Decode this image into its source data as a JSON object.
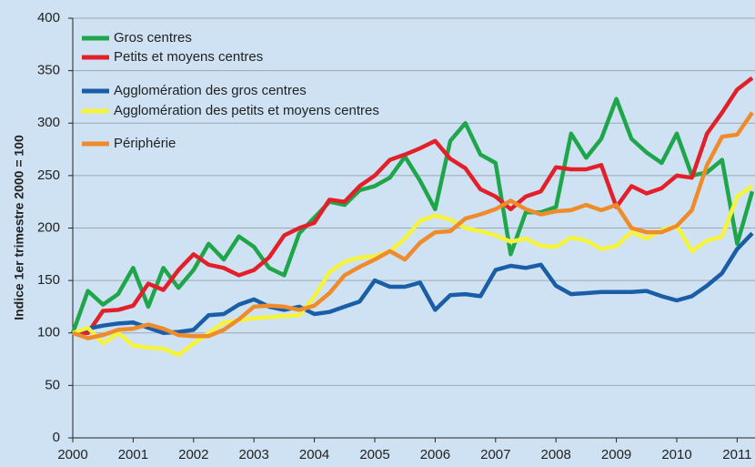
{
  "chart_data": {
    "type": "line",
    "y_label": "Indice 1er trimestre 2000 = 100",
    "x": [
      2000,
      2000.25,
      2000.5,
      2000.75,
      2001,
      2001.25,
      2001.5,
      2001.75,
      2002,
      2002.25,
      2002.5,
      2002.75,
      2003,
      2003.25,
      2003.5,
      2003.75,
      2004,
      2004.25,
      2004.5,
      2004.75,
      2005,
      2005.25,
      2005.5,
      2005.75,
      2006,
      2006.25,
      2006.5,
      2006.75,
      2007,
      2007.25,
      2007.5,
      2007.75,
      2008,
      2008.25,
      2008.5,
      2008.75,
      2009,
      2009.25,
      2009.5,
      2009.75,
      2010,
      2010.25,
      2010.5,
      2010.75,
      2011,
      2011.25
    ],
    "xlim": [
      2000,
      2011.25
    ],
    "xticks": [
      2000,
      2001,
      2002,
      2003,
      2004,
      2005,
      2006,
      2007,
      2008,
      2009,
      2010,
      2011
    ],
    "ylim": [
      0,
      400
    ],
    "yticks": [
      0,
      50,
      100,
      150,
      200,
      250,
      300,
      350,
      400
    ],
    "grid": true,
    "legend": "top-left",
    "series": [
      {
        "name": "Gros centres",
        "color": "#1fa64a",
        "values": [
          100,
          140,
          127,
          137,
          162,
          125,
          162,
          143,
          160,
          185,
          170,
          192,
          182,
          162,
          155,
          195,
          210,
          225,
          222,
          236,
          240,
          248,
          268,
          245,
          218,
          283,
          300,
          270,
          262,
          175,
          215,
          215,
          220,
          290,
          267,
          285,
          323,
          285,
          272,
          262,
          290,
          250,
          253,
          265,
          185,
          235
        ]
      },
      {
        "name": "Petits et moyens centres",
        "color": "#e3202a",
        "values": [
          100,
          100,
          121,
          122,
          126,
          147,
          141,
          160,
          175,
          165,
          162,
          155,
          160,
          172,
          193,
          200,
          205,
          227,
          225,
          240,
          250,
          265,
          270,
          276,
          283,
          266,
          257,
          237,
          230,
          218,
          230,
          235,
          258,
          256,
          256,
          260,
          220,
          240,
          233,
          238,
          250,
          248,
          290,
          310,
          332,
          343
        ]
      },
      {
        "name": "Agglomération des gros centres",
        "color": "#1a5ea8",
        "values": [
          100,
          104,
          107,
          109,
          110,
          105,
          100,
          101,
          103,
          117,
          118,
          127,
          132,
          125,
          122,
          125,
          118,
          120,
          125,
          130,
          150,
          144,
          144,
          148,
          122,
          136,
          137,
          135,
          160,
          164,
          162,
          165,
          145,
          137,
          138,
          139,
          139,
          139,
          140,
          135,
          131,
          135,
          145,
          157,
          180,
          195
        ]
      },
      {
        "name": "Agglomération des petits et moyens centres",
        "color": "#f6f33c",
        "values": [
          100,
          105,
          90,
          100,
          88,
          86,
          85,
          79,
          90,
          100,
          110,
          112,
          114,
          115,
          116,
          117,
          135,
          158,
          168,
          172,
          173,
          178,
          190,
          207,
          212,
          208,
          200,
          197,
          193,
          187,
          190,
          183,
          182,
          191,
          188,
          180,
          183,
          196,
          190,
          198,
          202,
          178,
          188,
          192,
          230,
          240
        ]
      },
      {
        "name": "Périphérie",
        "color": "#f08b2c",
        "values": [
          100,
          95,
          98,
          103,
          104,
          108,
          104,
          98,
          97,
          97,
          103,
          113,
          125,
          126,
          125,
          122,
          126,
          138,
          155,
          163,
          170,
          178,
          170,
          186,
          196,
          197,
          209,
          213,
          218,
          226,
          218,
          213,
          216,
          217,
          222,
          217,
          222,
          200,
          196,
          196,
          202,
          217,
          260,
          287,
          289,
          310
        ]
      }
    ]
  }
}
